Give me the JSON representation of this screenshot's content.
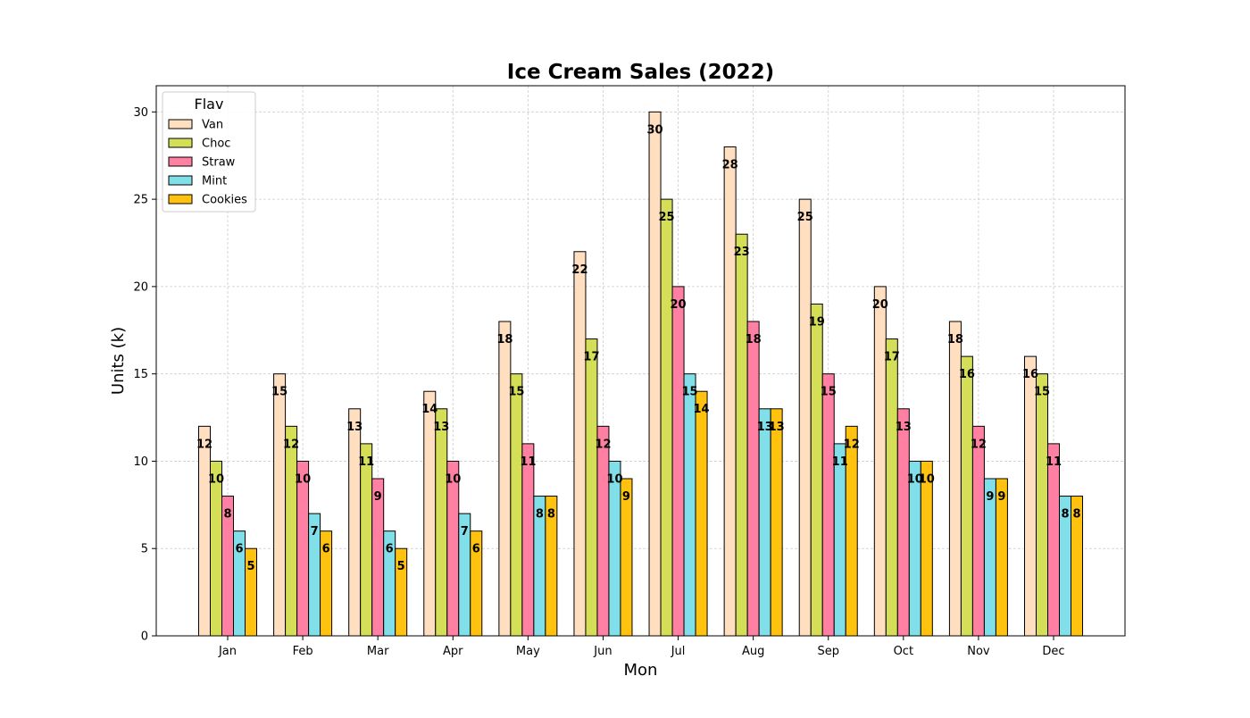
{
  "chart_data": {
    "type": "bar",
    "title": "Ice Cream Sales (2022)",
    "xlabel": "Mon",
    "ylabel": "Units (k)",
    "ylim": [
      0,
      31.5
    ],
    "yticks": [
      0,
      5,
      10,
      15,
      20,
      25,
      30
    ],
    "grid": true,
    "legend_title": "Flav",
    "legend_position": "top-left",
    "categories": [
      "Jan",
      "Feb",
      "Mar",
      "Apr",
      "May",
      "Jun",
      "Jul",
      "Aug",
      "Sep",
      "Oct",
      "Nov",
      "Dec"
    ],
    "series": [
      {
        "name": "Van",
        "color": "#ffdfbf",
        "values": [
          12,
          15,
          13,
          14,
          18,
          22,
          30,
          28,
          25,
          20,
          18,
          16
        ]
      },
      {
        "name": "Choc",
        "color": "#d4df57",
        "values": [
          10,
          12,
          11,
          13,
          15,
          17,
          25,
          23,
          19,
          17,
          16,
          15
        ]
      },
      {
        "name": "Straw",
        "color": "#ff80a2",
        "values": [
          8,
          10,
          9,
          10,
          11,
          12,
          20,
          18,
          15,
          13,
          12,
          11
        ]
      },
      {
        "name": "Mint",
        "color": "#80dfe8",
        "values": [
          6,
          7,
          6,
          7,
          8,
          10,
          15,
          13,
          11,
          10,
          9,
          8
        ]
      },
      {
        "name": "Cookies",
        "color": "#ffc20e",
        "values": [
          5,
          6,
          5,
          6,
          8,
          9,
          14,
          13,
          12,
          10,
          9,
          8
        ]
      }
    ]
  }
}
